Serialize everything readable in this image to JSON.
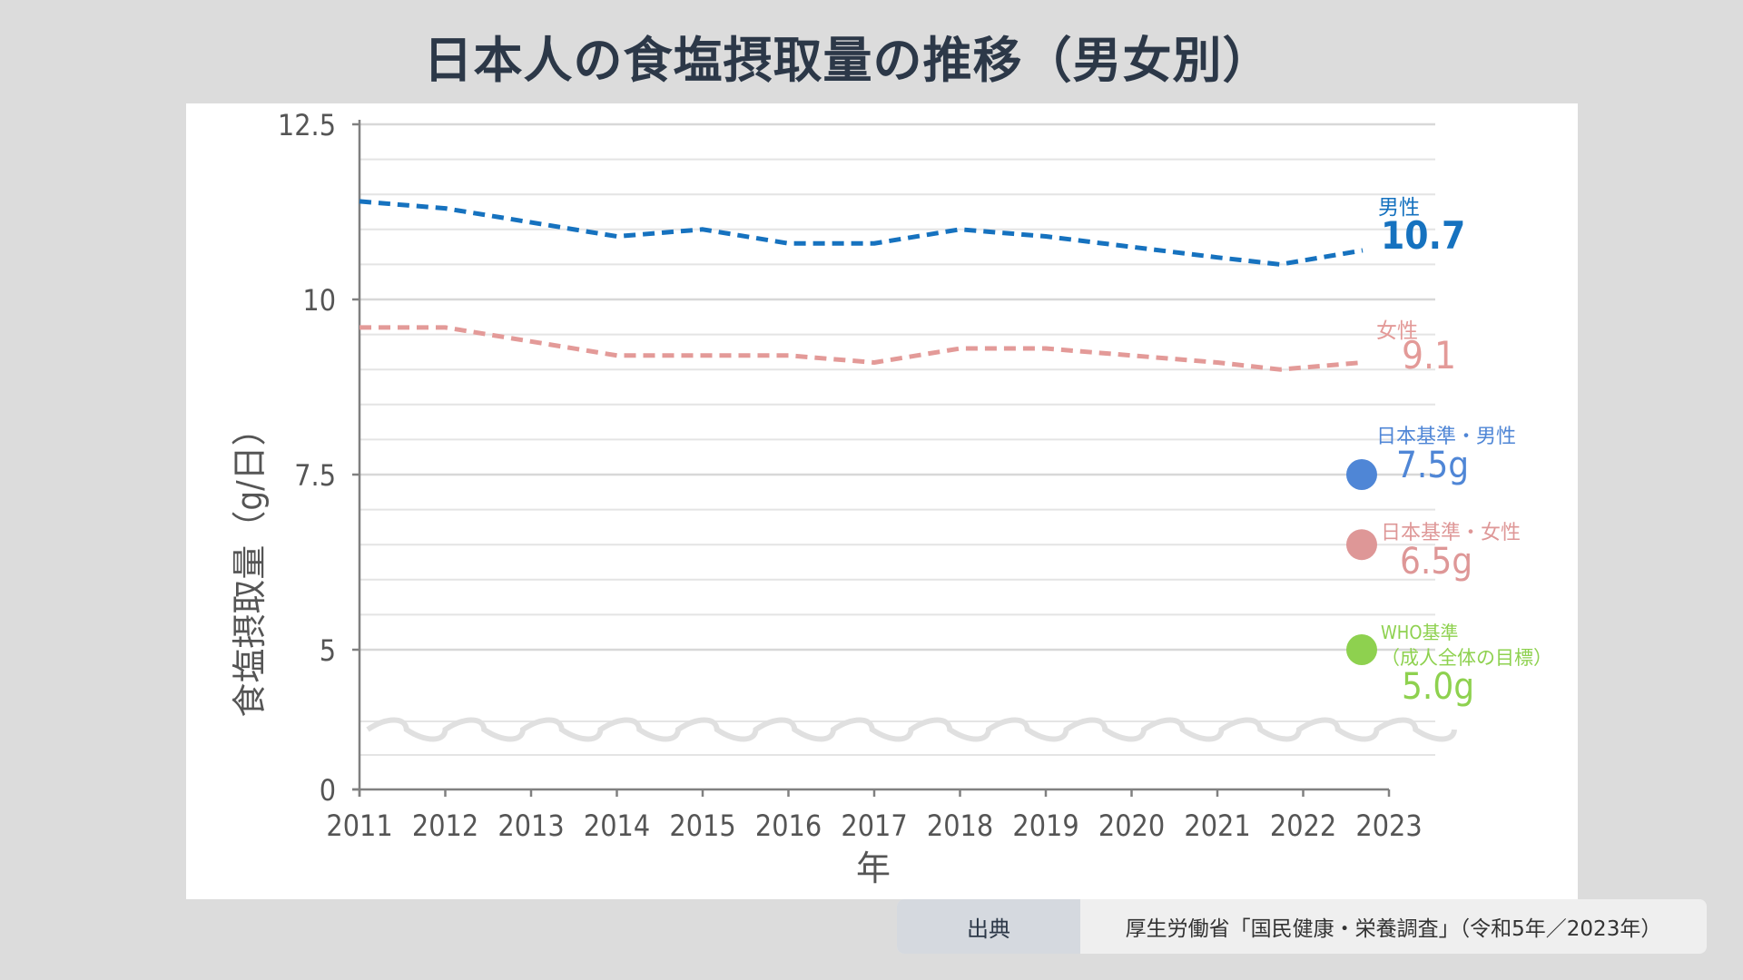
{
  "title": "日本人の食塩摂取量の推移（男女別）",
  "source": {
    "label": "出典",
    "text": "厚生労働省「国民健康・栄養調査」（令和5年／2023年）"
  },
  "colors": {
    "background": "#dcdcdc",
    "male": "#1672bf",
    "female": "#e39a98",
    "jp_male_target": "#4f86d6",
    "jp_female_target": "#de9797",
    "who_target": "#8ed14f",
    "axis": "#808080",
    "grid": "#e4e4e4",
    "text": "#555555"
  },
  "chart_data": {
    "type": "line",
    "title": "",
    "xlabel": "年",
    "ylabel": "食塩摂取量（g/日）",
    "x": [
      2011,
      2012,
      2013,
      2014,
      2015,
      2016,
      2017,
      2018,
      2019,
      2020,
      2021,
      2022,
      2023
    ],
    "ylim": [
      0,
      12.5
    ],
    "yticks": [
      "0",
      "5",
      "7.5",
      "10",
      "12.5"
    ],
    "axis_break": true,
    "grid": true,
    "series": [
      {
        "name": "男性",
        "line_style": "dashed",
        "x": [
          2011,
          2012,
          2013,
          2014,
          2015,
          2016,
          2017,
          2018,
          2019,
          2020,
          2021,
          2022,
          2023
        ],
        "values": [
          11.4,
          11.3,
          11.1,
          10.9,
          11.0,
          10.8,
          10.8,
          11.0,
          10.9,
          10.75,
          10.6,
          10.5,
          10.7
        ],
        "end_label": "10.7"
      },
      {
        "name": "女性",
        "line_style": "dashed",
        "x": [
          2011,
          2012,
          2013,
          2014,
          2015,
          2016,
          2017,
          2018,
          2019,
          2020,
          2021,
          2022,
          2023
        ],
        "values": [
          9.6,
          9.6,
          9.4,
          9.2,
          9.2,
          9.2,
          9.1,
          9.3,
          9.3,
          9.2,
          9.1,
          9.0,
          9.1
        ],
        "end_label": "9.1"
      }
    ],
    "targets": [
      {
        "name": "日本基準・男性",
        "value": 7.5,
        "label": "7.5g"
      },
      {
        "name": "日本基準・女性",
        "value": 6.5,
        "label": "6.5g"
      },
      {
        "name_line1": "WHO基準",
        "name_line2": "（成人全体の目標）",
        "value": 5.0,
        "label": "5.0g"
      }
    ]
  }
}
